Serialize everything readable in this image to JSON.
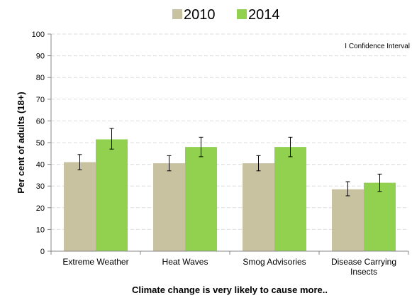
{
  "chart_data": {
    "type": "bar",
    "categories": [
      "Extreme Weather",
      "Heat Waves",
      "Smog Advisories",
      "Disease Carrying Insects"
    ],
    "series": [
      {
        "name": "2010",
        "color": "#c9c2a0",
        "values": [
          41,
          40.5,
          40.5,
          28.5
        ],
        "ci": [
          [
            37.5,
            44.5
          ],
          [
            37,
            44
          ],
          [
            37,
            44
          ],
          [
            25.5,
            32
          ]
        ]
      },
      {
        "name": "2014",
        "color": "#92d050",
        "values": [
          51.5,
          48,
          48,
          31.5
        ],
        "ci": [
          [
            47,
            56.5
          ],
          [
            43.5,
            52.5
          ],
          [
            43.5,
            52.5
          ],
          [
            27.5,
            35.5
          ]
        ]
      }
    ],
    "ylabel": "Per cent of adults (18+)",
    "xlabel": "Climate change is very likely to cause more..",
    "ylim": [
      0,
      100
    ],
    "yticks": [
      0,
      10,
      20,
      30,
      40,
      50,
      60,
      70,
      80,
      90,
      100
    ],
    "grid": true,
    "legend_position": "top",
    "annotation": "I Confidence Interval"
  }
}
